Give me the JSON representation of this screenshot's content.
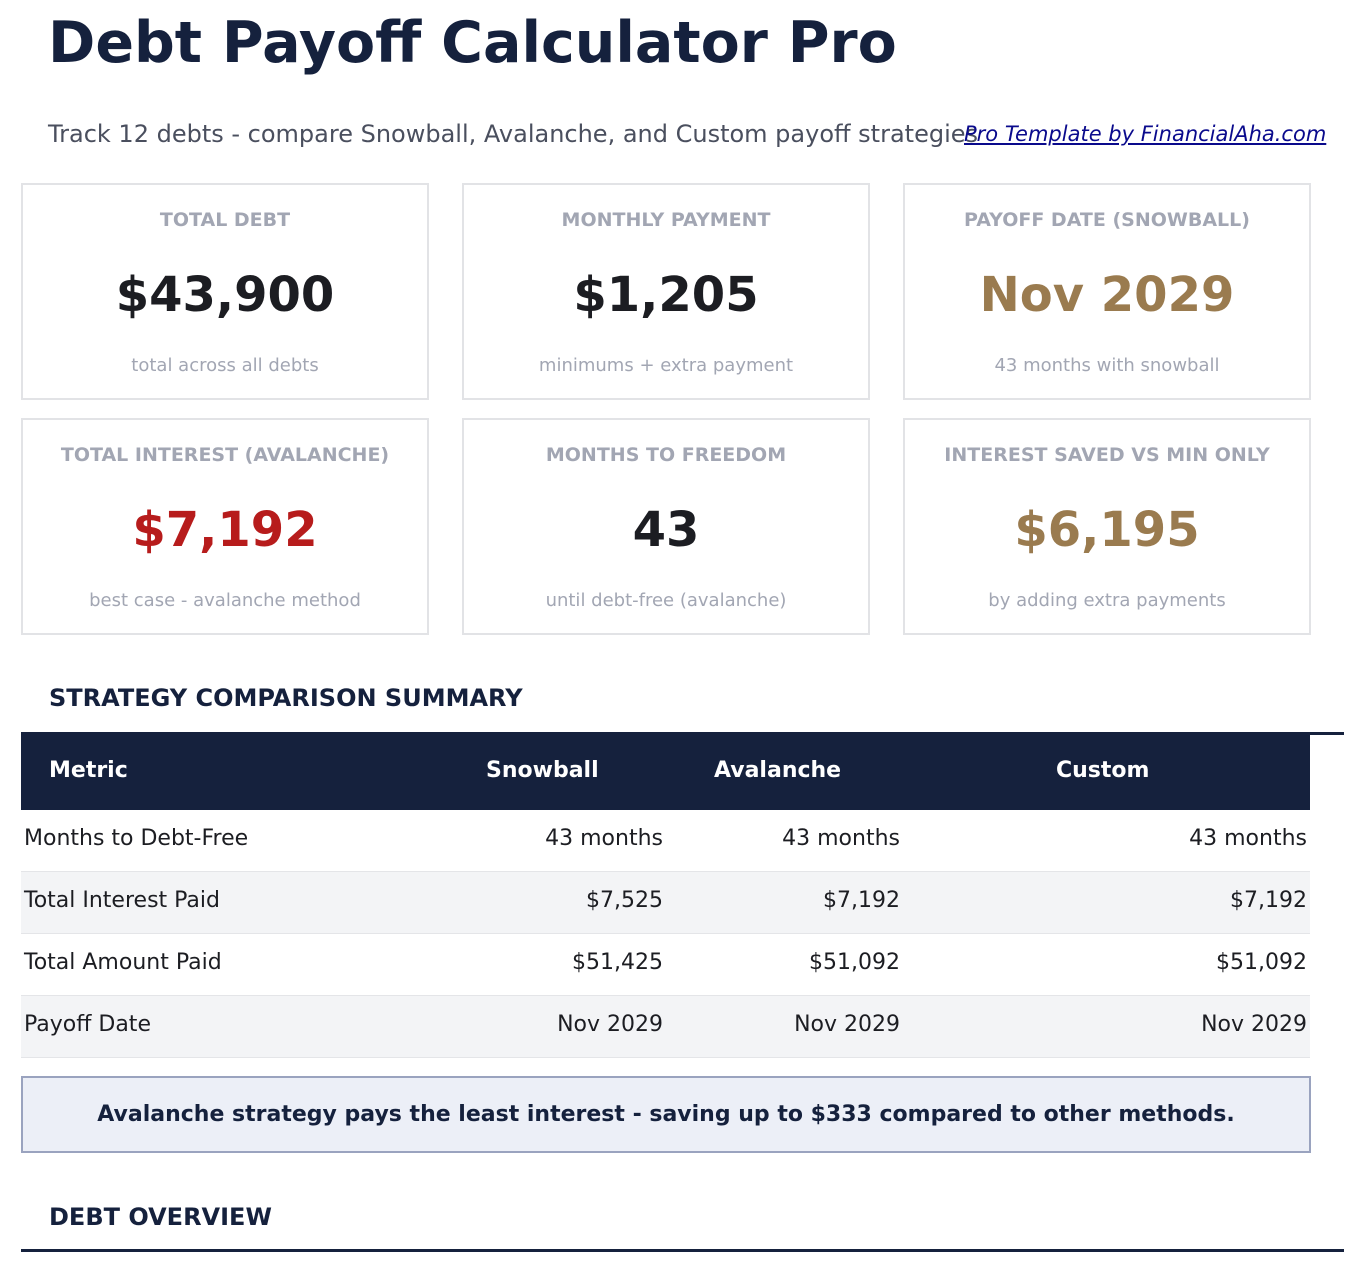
{
  "header": {
    "title": "Debt Payoff Calculator Pro",
    "subtitle": "Track 12 debts - compare Snowball, Avalanche, and Custom payoff strategies",
    "link": "Pro Template by FinancialAha.com"
  },
  "cards": [
    {
      "label": "TOTAL DEBT",
      "value": "$43,900",
      "sub": "total across all debts",
      "color": "#1c1d22"
    },
    {
      "label": "MONTHLY PAYMENT",
      "value": "$1,205",
      "sub": "minimums + extra payment",
      "color": "#1c1d22"
    },
    {
      "label": "PAYOFF DATE (SNOWBALL)",
      "value": "Nov 2029",
      "sub": "43 months with snowball",
      "color": "#9a7b4f"
    },
    {
      "label": "TOTAL INTEREST (AVALANCHE)",
      "value": "$7,192",
      "sub": "best case - avalanche method",
      "color": "#b71c1c"
    },
    {
      "label": "MONTHS TO FREEDOM",
      "value": "43",
      "sub": "until debt-free (avalanche)",
      "color": "#1c1d22"
    },
    {
      "label": "INTEREST SAVED VS MIN ONLY",
      "value": "$6,195",
      "sub": "by adding extra payments",
      "color": "#9a7b4f"
    }
  ],
  "comparison": {
    "title": "STRATEGY COMPARISON SUMMARY",
    "columns": [
      "Metric",
      "Snowball",
      "Avalanche",
      "Custom"
    ],
    "rows": [
      [
        "Months to Debt-Free",
        "43 months",
        "43 months",
        "43 months"
      ],
      [
        "Total Interest Paid",
        "$7,525",
        "$7,192",
        "$7,192"
      ],
      [
        "Total Amount Paid",
        "$51,425",
        "$51,092",
        "$51,092"
      ],
      [
        "Payoff Date",
        "Nov 2029",
        "Nov 2029",
        "Nov 2029"
      ]
    ],
    "callout": "Avalanche strategy pays the least interest - saving up to $333 compared to other methods."
  },
  "overview": {
    "title": "DEBT OVERVIEW"
  }
}
